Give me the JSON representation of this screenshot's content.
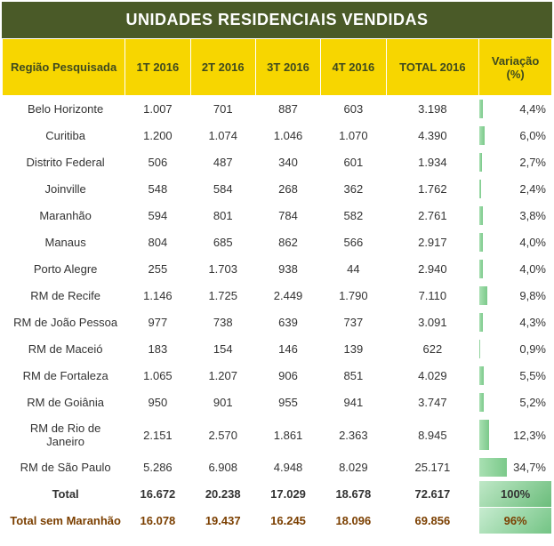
{
  "title": "UNIDADES RESIDENCIAIS VENDIDAS",
  "columns": [
    "Região Pesquisada",
    "1T 2016",
    "2T 2016",
    "3T 2016",
    "4T 2016",
    "TOTAL 2016",
    "Variação (%)"
  ],
  "colors": {
    "header_bg": "#4a5a28",
    "header_fg": "#ffffff",
    "th_bg": "#f7d600",
    "th_fg": "#3f4a1f",
    "row_bg": "#ffffff",
    "bar_start": "#a8e0b2",
    "bar_end": "#7bc98a",
    "total_row_bg": "#f7d600",
    "subtotal_fg": "#7b3f00"
  },
  "bar_scale_max_pct": 34.7,
  "rows": [
    {
      "region": "Belo Horizonte",
      "q1": "1.007",
      "q2": "701",
      "q3": "887",
      "q4": "603",
      "total": "3.198",
      "var": "4,4%",
      "var_num": 4.4
    },
    {
      "region": "Curitiba",
      "q1": "1.200",
      "q2": "1.074",
      "q3": "1.046",
      "q4": "1.070",
      "total": "4.390",
      "var": "6,0%",
      "var_num": 6.0
    },
    {
      "region": "Distrito Federal",
      "q1": "506",
      "q2": "487",
      "q3": "340",
      "q4": "601",
      "total": "1.934",
      "var": "2,7%",
      "var_num": 2.7
    },
    {
      "region": "Joinville",
      "q1": "548",
      "q2": "584",
      "q3": "268",
      "q4": "362",
      "total": "1.762",
      "var": "2,4%",
      "var_num": 2.4
    },
    {
      "region": "Maranhão",
      "q1": "594",
      "q2": "801",
      "q3": "784",
      "q4": "582",
      "total": "2.761",
      "var": "3,8%",
      "var_num": 3.8
    },
    {
      "region": "Manaus",
      "q1": "804",
      "q2": "685",
      "q3": "862",
      "q4": "566",
      "total": "2.917",
      "var": "4,0%",
      "var_num": 4.0
    },
    {
      "region": "Porto Alegre",
      "q1": "255",
      "q2": "1.703",
      "q3": "938",
      "q4": "44",
      "total": "2.940",
      "var": "4,0%",
      "var_num": 4.0
    },
    {
      "region": "RM de Recife",
      "q1": "1.146",
      "q2": "1.725",
      "q3": "2.449",
      "q4": "1.790",
      "total": "7.110",
      "var": "9,8%",
      "var_num": 9.8
    },
    {
      "region": "RM de João Pessoa",
      "q1": "977",
      "q2": "738",
      "q3": "639",
      "q4": "737",
      "total": "3.091",
      "var": "4,3%",
      "var_num": 4.3
    },
    {
      "region": "RM de Maceió",
      "q1": "183",
      "q2": "154",
      "q3": "146",
      "q4": "139",
      "total": "622",
      "var": "0,9%",
      "var_num": 0.9
    },
    {
      "region": "RM de Fortaleza",
      "q1": "1.065",
      "q2": "1.207",
      "q3": "906",
      "q4": "851",
      "total": "4.029",
      "var": "5,5%",
      "var_num": 5.5
    },
    {
      "region": "RM de Goiânia",
      "q1": "950",
      "q2": "901",
      "q3": "955",
      "q4": "941",
      "total": "3.747",
      "var": "5,2%",
      "var_num": 5.2
    },
    {
      "region": "RM de Rio de Janeiro",
      "q1": "2.151",
      "q2": "2.570",
      "q3": "1.861",
      "q4": "2.363",
      "total": "8.945",
      "var": "12,3%",
      "var_num": 12.3
    },
    {
      "region": "RM de São Paulo",
      "q1": "5.286",
      "q2": "6.908",
      "q3": "4.948",
      "q4": "8.029",
      "total": "25.171",
      "var": "34,7%",
      "var_num": 34.7
    }
  ],
  "total_row": {
    "label": "Total",
    "q1": "16.672",
    "q2": "20.238",
    "q3": "17.029",
    "q4": "18.678",
    "total": "72.617",
    "var": "100%"
  },
  "subtotal_row": {
    "label": "Total sem Maranhão",
    "q1": "16.078",
    "q2": "19.437",
    "q3": "16.245",
    "q4": "18.096",
    "total": "69.856",
    "var": "96%"
  },
  "fontsizes": {
    "title": 18,
    "th": 13,
    "td": 13
  }
}
